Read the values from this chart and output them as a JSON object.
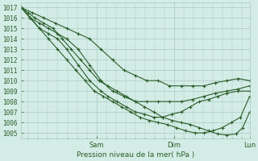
{
  "title": "",
  "xlabel": "Pression niveau de la mer( hPa )",
  "bg_color": "#d4ece6",
  "grid_color": "#a8c8c0",
  "line_color": "#2a5e2a",
  "ylim": [
    1004.5,
    1017.5
  ],
  "yticks": [
    1005,
    1006,
    1007,
    1008,
    1009,
    1010,
    1011,
    1012,
    1013,
    1014,
    1015,
    1016,
    1017
  ],
  "day_labels": [
    "Sam",
    "Dim",
    "Lun"
  ],
  "day_positions": [
    0.33,
    0.67,
    1.0
  ],
  "series": [
    {
      "x": [
        0.0,
        0.05,
        0.1,
        0.15,
        0.2,
        0.25,
        0.3,
        0.35,
        0.4,
        0.45,
        0.5,
        0.55,
        0.6,
        0.65,
        0.7,
        0.75,
        0.8,
        0.85,
        0.9,
        0.95,
        1.0
      ],
      "y": [
        1017,
        1016.5,
        1016,
        1015.5,
        1015,
        1014.5,
        1014,
        1013,
        1012,
        1011,
        1010.5,
        1010,
        1010,
        1009.5,
        1009.5,
        1009.5,
        1009.5,
        1009.8,
        1010,
        1010.2,
        1010
      ]
    },
    {
      "x": [
        0.0,
        0.04,
        0.08,
        0.12,
        0.16,
        0.2,
        0.25,
        0.3,
        0.35,
        0.4,
        0.45,
        0.5,
        0.55,
        0.6,
        0.65,
        0.7,
        0.75,
        0.8,
        0.85,
        0.9,
        0.95,
        1.0
      ],
      "y": [
        1017,
        1016,
        1015.5,
        1015,
        1014.5,
        1014,
        1013,
        1011.5,
        1010,
        1009,
        1008.5,
        1008,
        1008,
        1008,
        1008,
        1008,
        1008.2,
        1008.5,
        1008.8,
        1009,
        1009.2,
        1009.5
      ]
    },
    {
      "x": [
        0.0,
        0.04,
        0.08,
        0.12,
        0.16,
        0.2,
        0.25,
        0.3,
        0.35,
        0.38,
        0.42,
        0.46,
        0.5,
        0.54,
        0.58,
        0.62,
        0.66,
        0.7,
        0.74,
        0.78,
        0.82,
        0.86,
        0.9,
        0.95,
        1.0
      ],
      "y": [
        1017,
        1016,
        1015,
        1014.5,
        1014,
        1013,
        1011.5,
        1010,
        1009,
        1008.5,
        1008,
        1007.5,
        1007,
        1006.8,
        1006.5,
        1006.5,
        1006.8,
        1007,
        1007.5,
        1008,
        1008.2,
        1008.5,
        1008.8,
        1009,
        1009
      ]
    },
    {
      "x": [
        0.0,
        0.04,
        0.08,
        0.12,
        0.16,
        0.2,
        0.24,
        0.28,
        0.32,
        0.36,
        0.4,
        0.44,
        0.48,
        0.52,
        0.56,
        0.6,
        0.64,
        0.68,
        0.72,
        0.76,
        0.8,
        0.84,
        0.88,
        0.92,
        0.96,
        1.0
      ],
      "y": [
        1017,
        1016,
        1015,
        1014,
        1013,
        1012,
        1011,
        1010,
        1009,
        1008.5,
        1008,
        1007.5,
        1007,
        1006.5,
        1006.2,
        1006,
        1005.8,
        1005.5,
        1005.2,
        1005,
        1005,
        1005.2,
        1005.5,
        1006,
        1006.5,
        1008.5
      ]
    },
    {
      "x": [
        0.0,
        0.03,
        0.06,
        0.1,
        0.14,
        0.18,
        0.22,
        0.26,
        0.3,
        0.34,
        0.38,
        0.42,
        0.46,
        0.5,
        0.54,
        0.58,
        0.62,
        0.66,
        0.7,
        0.74,
        0.78,
        0.82,
        0.86,
        0.9,
        0.94,
        0.97,
        1.0
      ],
      "y": [
        1017,
        1016.5,
        1016,
        1015.5,
        1015,
        1014,
        1013,
        1012,
        1011,
        1010,
        1009.5,
        1009,
        1008.5,
        1008,
        1007.5,
        1007,
        1006.5,
        1006.2,
        1006,
        1005.8,
        1005.5,
        1005.2,
        1004.9,
        1004.8,
        1004.9,
        1005.5,
        1007
      ]
    }
  ]
}
